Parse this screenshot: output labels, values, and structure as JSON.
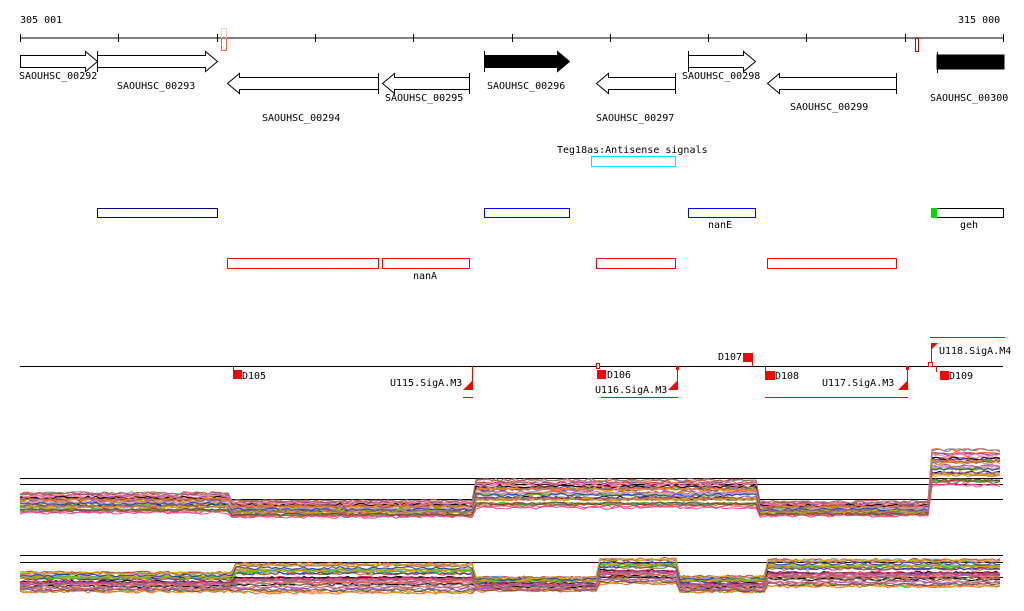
{
  "ruler": {
    "start_label": "305 001",
    "end_label": "315 000"
  },
  "genes": [
    {
      "label": "SAOUHSC_00292",
      "strand": "+"
    },
    {
      "label": "SAOUHSC_00293",
      "strand": "+"
    },
    {
      "label": "SAOUHSC_00294",
      "strand": "-"
    },
    {
      "label": "SAOUHSC_00295",
      "strand": "-"
    },
    {
      "label": "SAOUHSC_00296",
      "strand": "+",
      "highlighted": true
    },
    {
      "label": "SAOUHSC_00297",
      "strand": "-"
    },
    {
      "label": "SAOUHSC_00298",
      "strand": "+"
    },
    {
      "label": "SAOUHSC_00299",
      "strand": "-"
    },
    {
      "label": "SAOUHSC_00300",
      "strand": "+",
      "highlighted": true
    }
  ],
  "antisense": {
    "label": "Teg18as:Antisense signals",
    "color": "#00e5ee"
  },
  "forward_features": [
    {
      "label": ""
    },
    {
      "label": ""
    },
    {
      "label": "nanE"
    },
    {
      "label": "geh"
    }
  ],
  "reverse_features": [
    {
      "label": ""
    },
    {
      "label": "nanA"
    },
    {
      "label": ""
    },
    {
      "label": ""
    }
  ],
  "operon_track": {
    "downshifts": [
      "D105",
      "D106",
      "D107",
      "D108",
      "D109"
    ],
    "upshifts": [
      "U115.SigA.M3",
      "U116.SigA.M3",
      "U117.SigA.M3",
      "U118.SigA.M4"
    ]
  },
  "colors": {
    "marker": "#ff0000",
    "blue": "#0000ff",
    "navy": "#000080",
    "green": "#00cc00",
    "orange": "#ff7f50"
  }
}
